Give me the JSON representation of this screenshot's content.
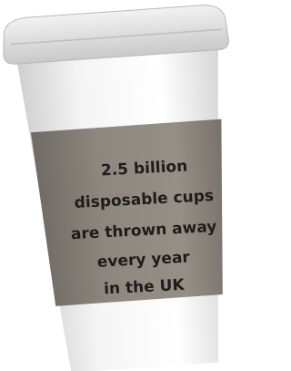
{
  "sleeve_text": {
    "lines": [
      "2.5 billion",
      "disposable cups",
      "are thrown away",
      "every year",
      "in the UK"
    ]
  }
}
